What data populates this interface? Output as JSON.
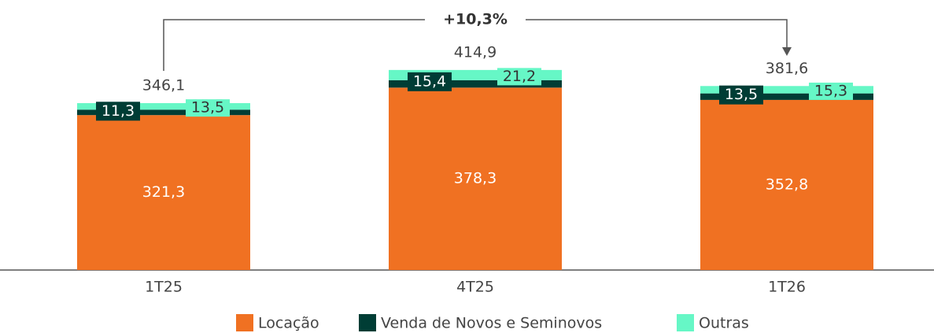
{
  "chart_data": {
    "type": "stacked_bar",
    "categories": [
      "1T25",
      "4T25",
      "1T26"
    ],
    "series": [
      {
        "name": "Locação",
        "color": "#f07122",
        "values": [
          321.3,
          378.3,
          352.8
        ],
        "value_labels": [
          "321,3",
          "378,3",
          "352,8"
        ]
      },
      {
        "name": "Venda de Novos e Seminovos",
        "color": "#003d35",
        "values": [
          11.3,
          15.4,
          13.5
        ],
        "value_labels": [
          "11,3",
          "15,4",
          "13,5"
        ]
      },
      {
        "name": "Outras",
        "color": "#66f7c6",
        "values": [
          13.5,
          21.2,
          15.3
        ],
        "value_labels": [
          "13,5",
          "21,2",
          "15,3"
        ]
      }
    ],
    "totals": [
      346.1,
      414.9,
      381.6
    ],
    "total_labels": [
      "346,1",
      "414,9",
      "381,6"
    ],
    "annotation": "+10,3%",
    "ylim": [
      0,
      560
    ],
    "legend": "bottom"
  }
}
